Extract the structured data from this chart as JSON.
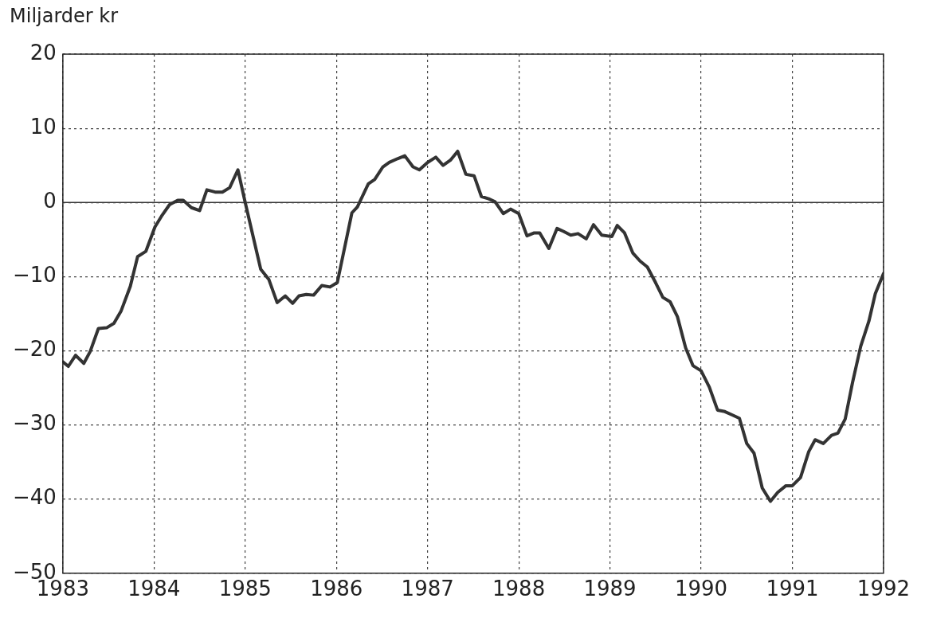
{
  "chart_data": {
    "type": "line",
    "ylabel": "Miljarder kr",
    "x": [
      1983.0,
      1983.06,
      1983.14,
      1983.23,
      1983.3,
      1983.39,
      1983.48,
      1983.56,
      1983.64,
      1983.74,
      1983.82,
      1983.91,
      1984.01,
      1984.09,
      1984.17,
      1984.26,
      1984.32,
      1984.41,
      1984.5,
      1984.58,
      1984.67,
      1984.75,
      1984.83,
      1984.92,
      1985.0,
      1985.17,
      1985.26,
      1985.35,
      1985.44,
      1985.52,
      1985.59,
      1985.67,
      1985.75,
      1985.84,
      1985.93,
      1986.01,
      1986.17,
      1986.23,
      1986.35,
      1986.42,
      1986.51,
      1986.58,
      1986.67,
      1986.75,
      1986.84,
      1986.91,
      1987.0,
      1987.09,
      1987.17,
      1987.25,
      1987.33,
      1987.42,
      1987.51,
      1987.59,
      1987.67,
      1987.74,
      1987.83,
      1987.91,
      1988.0,
      1988.09,
      1988.17,
      1988.23,
      1988.33,
      1988.42,
      1988.49,
      1988.57,
      1988.65,
      1988.74,
      1988.82,
      1988.91,
      1989.02,
      1989.08,
      1989.16,
      1989.25,
      1989.33,
      1989.41,
      1989.5,
      1989.58,
      1989.66,
      1989.74,
      1989.83,
      1989.91,
      1990.0,
      1990.09,
      1990.18,
      1990.26,
      1990.35,
      1990.42,
      1990.5,
      1990.58,
      1990.67,
      1990.76,
      1990.84,
      1990.93,
      1991.0,
      1991.09,
      1991.18,
      1991.25,
      1991.34,
      1991.43,
      1991.5,
      1991.58,
      1991.66,
      1991.75,
      1991.84,
      1991.91,
      1992.0
    ],
    "series": [
      {
        "color": "#333333",
        "values": [
          -21.5,
          -22.1,
          -20.6,
          -21.7,
          -20.1,
          -17.0,
          -16.9,
          -16.3,
          -14.6,
          -11.3,
          -7.3,
          -6.6,
          -3.3,
          -1.7,
          -0.3,
          0.3,
          0.3,
          -0.7,
          -1.1,
          1.7,
          1.4,
          1.4,
          2.0,
          4.4,
          0,
          -9.0,
          -10.4,
          -13.5,
          -12.6,
          -13.6,
          -12.6,
          -12.4,
          -12.5,
          -11.2,
          -11.4,
          -10.8,
          -1.4,
          -0.6,
          2.5,
          3.1,
          4.8,
          5.4,
          5.9,
          6.3,
          4.8,
          4.4,
          5.4,
          6.1,
          5.0,
          5.7,
          6.9,
          3.8,
          3.6,
          0.8,
          0.5,
          0.1,
          -1.5,
          -0.9,
          -1.5,
          -4.5,
          -4.1,
          -4.1,
          -6.2,
          -3.5,
          -3.9,
          -4.4,
          -4.2,
          -4.9,
          -3.0,
          -4.4,
          -4.6,
          -3.1,
          -4.1,
          -6.8,
          -7.9,
          -8.7,
          -10.8,
          -12.8,
          -13.4,
          -15.4,
          -19.6,
          -22.0,
          -22.7,
          -24.9,
          -28.0,
          -28.2,
          -28.7,
          -29.1,
          -32.5,
          -33.8,
          -38.5,
          -40.3,
          -39.1,
          -38.2,
          -38.2,
          -37.1,
          -33.6,
          -32.0,
          -32.5,
          -31.4,
          -31.1,
          -29.2,
          -24.3,
          -19.4,
          -16.0,
          -12.3,
          -9.6
        ]
      }
    ],
    "xlim": [
      1983,
      1992
    ],
    "xticks": [
      1983,
      1984,
      1985,
      1986,
      1987,
      1988,
      1989,
      1990,
      1991,
      1992
    ],
    "ylim": [
      -50,
      20
    ],
    "yticks": [
      -50,
      -40,
      -30,
      -20,
      -10,
      0,
      10,
      20
    ],
    "ref_lines": [
      {
        "axis": "y",
        "value": 0,
        "color": "#333333",
        "line_style": "solid"
      }
    ],
    "grid": true,
    "legend": false,
    "marker": "none",
    "line_style": "solid"
  }
}
